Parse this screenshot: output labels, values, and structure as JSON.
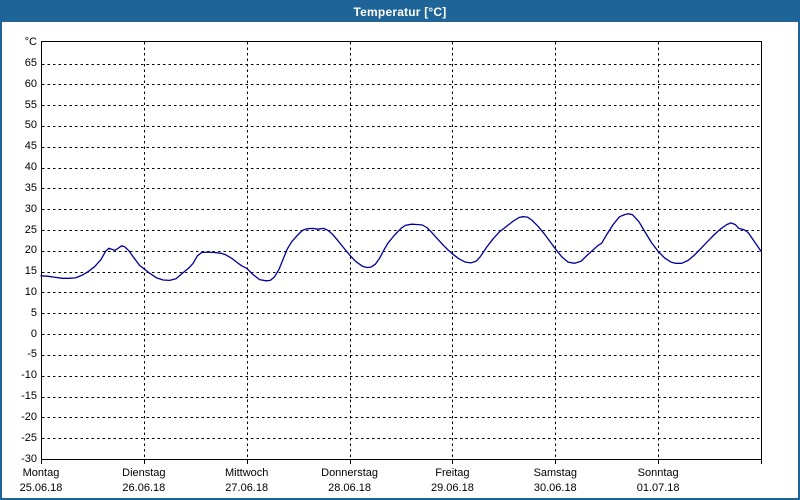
{
  "window": {
    "title": "Temperatur [°C]"
  },
  "colors": {
    "titlebar": "#1e6496",
    "window_border": "#1e6496",
    "plot_border": "#000000",
    "grid": "#000000",
    "line": "#000099",
    "background": "#ffffff",
    "text": "#000000"
  },
  "chart_data": {
    "type": "line",
    "title": "Temperatur [°C]",
    "grid": "dashed",
    "legend": "none",
    "y_axis": {
      "unit": "°C",
      "ticks": [
        65,
        60,
        55,
        50,
        45,
        40,
        35,
        30,
        25,
        20,
        15,
        10,
        5,
        0,
        -5,
        -10,
        -15,
        -20,
        -25,
        -30
      ],
      "ylim": [
        -30,
        70.4
      ]
    },
    "x_axis": {
      "span_days": 7,
      "x_unit": "hours",
      "ticks": [
        {
          "day": "Montag",
          "date": "25.06.18"
        },
        {
          "day": "Dienstag",
          "date": "26.06.18"
        },
        {
          "day": "Mittwoch",
          "date": "27.06.18"
        },
        {
          "day": "Donnerstag",
          "date": "28.06.18"
        },
        {
          "day": "Freitag",
          "date": "29.06.18"
        },
        {
          "day": "Samstag",
          "date": "30.06.18"
        },
        {
          "day": "Sonntag",
          "date": "01.07.18"
        }
      ]
    },
    "series": [
      {
        "name": "Temperatur",
        "color": "#000099",
        "points": [
          [
            0,
            14.0
          ],
          [
            1.5,
            13.9
          ],
          [
            3,
            13.7
          ],
          [
            5,
            13.4
          ],
          [
            6.5,
            13.4
          ],
          [
            8,
            13.5
          ],
          [
            9.5,
            14.1
          ],
          [
            11,
            15.0
          ],
          [
            12.5,
            16.2
          ],
          [
            14,
            17.9
          ],
          [
            15,
            19.8
          ],
          [
            15.8,
            20.6
          ],
          [
            17.3,
            20.1
          ],
          [
            18.8,
            21.2
          ],
          [
            19.5,
            21.0
          ],
          [
            20.5,
            20.0
          ],
          [
            21.5,
            18.6
          ],
          [
            23,
            16.5
          ],
          [
            24,
            15.7
          ],
          [
            25.5,
            14.5
          ],
          [
            27,
            13.5
          ],
          [
            28.5,
            13.0
          ],
          [
            30,
            12.9
          ],
          [
            31.5,
            13.3
          ],
          [
            33,
            14.6
          ],
          [
            34.5,
            15.9
          ],
          [
            35.5,
            17.0
          ],
          [
            36.5,
            18.8
          ],
          [
            37.5,
            19.6
          ],
          [
            39,
            19.7
          ],
          [
            40.5,
            19.6
          ],
          [
            42,
            19.4
          ],
          [
            43,
            19.1
          ],
          [
            44.5,
            18.2
          ],
          [
            46,
            17.0
          ],
          [
            47,
            16.3
          ],
          [
            48,
            15.8
          ],
          [
            49.5,
            14.3
          ],
          [
            51,
            13.1
          ],
          [
            52.5,
            12.8
          ],
          [
            53.5,
            12.9
          ],
          [
            54.5,
            13.8
          ],
          [
            55.5,
            15.5
          ],
          [
            56.5,
            18.0
          ],
          [
            57.5,
            20.5
          ],
          [
            58.5,
            22.2
          ],
          [
            60,
            23.9
          ],
          [
            61,
            24.9
          ],
          [
            62,
            25.3
          ],
          [
            63.5,
            25.4
          ],
          [
            64.5,
            25.2
          ],
          [
            66,
            25.4
          ],
          [
            67,
            24.9
          ],
          [
            68,
            24.0
          ],
          [
            69,
            22.8
          ],
          [
            70.5,
            20.9
          ],
          [
            72,
            19.0
          ],
          [
            73.5,
            17.4
          ],
          [
            75,
            16.3
          ],
          [
            76,
            16.0
          ],
          [
            77,
            16.1
          ],
          [
            78,
            16.8
          ],
          [
            79,
            18.2
          ],
          [
            80,
            20.2
          ],
          [
            81,
            21.9
          ],
          [
            82.5,
            23.8
          ],
          [
            84,
            25.4
          ],
          [
            85,
            26.1
          ],
          [
            86.5,
            26.4
          ],
          [
            88,
            26.3
          ],
          [
            89,
            26.2
          ],
          [
            90,
            25.6
          ],
          [
            91,
            24.6
          ],
          [
            92.5,
            22.9
          ],
          [
            94,
            21.2
          ],
          [
            95,
            20.2
          ],
          [
            96,
            19.3
          ],
          [
            97.5,
            18.1
          ],
          [
            99,
            17.3
          ],
          [
            100.3,
            17.1
          ],
          [
            101.5,
            17.5
          ],
          [
            102.5,
            18.6
          ],
          [
            104,
            20.9
          ],
          [
            105.5,
            22.9
          ],
          [
            107,
            24.6
          ],
          [
            108.5,
            25.8
          ],
          [
            110,
            27.0
          ],
          [
            111.5,
            28.0
          ],
          [
            112.5,
            28.2
          ],
          [
            113.5,
            28.1
          ],
          [
            114.5,
            27.4
          ],
          [
            116,
            25.9
          ],
          [
            117.5,
            24.0
          ],
          [
            119,
            21.9
          ],
          [
            120,
            20.5
          ],
          [
            121.5,
            18.6
          ],
          [
            123,
            17.3
          ],
          [
            124.5,
            17.0
          ],
          [
            126,
            17.5
          ],
          [
            127.5,
            19.0
          ],
          [
            129,
            20.4
          ],
          [
            130,
            21.3
          ],
          [
            130.8,
            21.8
          ],
          [
            132,
            23.9
          ],
          [
            133.5,
            26.3
          ],
          [
            135,
            28.2
          ],
          [
            136.2,
            28.7
          ],
          [
            137,
            28.9
          ],
          [
            138,
            28.7
          ],
          [
            139.5,
            27.0
          ],
          [
            141,
            24.4
          ],
          [
            142.5,
            21.9
          ],
          [
            144,
            19.9
          ],
          [
            145.5,
            18.3
          ],
          [
            147,
            17.3
          ],
          [
            148,
            17.0
          ],
          [
            149.5,
            17.0
          ],
          [
            151,
            17.7
          ],
          [
            152.5,
            19.0
          ],
          [
            154,
            20.6
          ],
          [
            155.5,
            22.2
          ],
          [
            157,
            23.8
          ],
          [
            158.5,
            25.2
          ],
          [
            160,
            26.3
          ],
          [
            161,
            26.7
          ],
          [
            162,
            26.3
          ],
          [
            162.8,
            25.4
          ],
          [
            164,
            25.1
          ],
          [
            165,
            24.4
          ],
          [
            166.2,
            22.6
          ],
          [
            167.2,
            21.1
          ],
          [
            168,
            19.9
          ]
        ]
      }
    ]
  }
}
